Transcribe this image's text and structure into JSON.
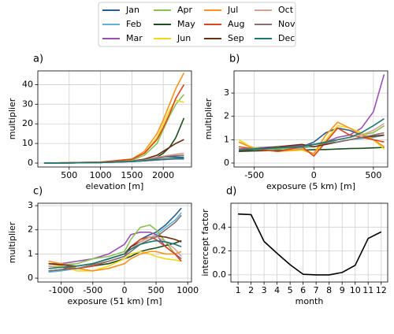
{
  "legend": {
    "names": [
      "Jan",
      "Feb",
      "Mar",
      "Apr",
      "May",
      "Jun",
      "Jul",
      "Aug",
      "Sep",
      "Oct",
      "Nov",
      "Dec"
    ],
    "colors": [
      "#2b5d8a",
      "#5ab4d8",
      "#9b4fb4",
      "#8cc152",
      "#1e4d1e",
      "#f0d81a",
      "#f7931e",
      "#d9471e",
      "#6b2e0e",
      "#d4a394",
      "#8a7070",
      "#1a7a70"
    ]
  },
  "chart_data": [
    {
      "type": "line",
      "label": "a)",
      "xlabel": "elevation [m]",
      "ylabel": "multiplier",
      "grid": true,
      "xlim": [
        0,
        2450
      ],
      "ylim": [
        -2,
        47
      ],
      "xticks": [
        500,
        1000,
        1500,
        2000
      ],
      "yticks": [
        0,
        10,
        20,
        30,
        40
      ],
      "x": [
        100,
        500,
        1000,
        1500,
        1700,
        1900,
        2000,
        2100,
        2200,
        2330
      ],
      "series": [
        {
          "values": [
            0,
            0.2,
            0.5,
            1.2,
            1.8,
            2.5,
            3,
            3.2,
            3.1,
            3
          ]
        },
        {
          "values": [
            0,
            0.1,
            0.3,
            0.8,
            1.2,
            1.6,
            1.8,
            2,
            2.1,
            2
          ]
        },
        {
          "values": [
            0,
            0.1,
            0.3,
            0.8,
            1.2,
            1.6,
            1.8,
            2,
            2.2,
            2.3
          ]
        },
        {
          "values": [
            0,
            0.2,
            0.5,
            1.5,
            4,
            10,
            17,
            24,
            30,
            35
          ]
        },
        {
          "values": [
            0,
            0.1,
            0.3,
            1,
            1.5,
            3,
            5,
            8,
            13,
            23
          ]
        },
        {
          "values": [
            0,
            0.2,
            0.5,
            2,
            5,
            13,
            20,
            27,
            32,
            31
          ]
        },
        {
          "values": [
            0,
            0.2,
            0.5,
            2,
            6,
            15,
            22,
            30,
            38,
            46
          ]
        },
        {
          "values": [
            0,
            0.2,
            0.5,
            2,
            5,
            12,
            18,
            25,
            33,
            40
          ]
        },
        {
          "values": [
            0,
            0.1,
            0.3,
            1,
            2,
            4,
            6,
            8,
            10,
            12
          ]
        },
        {
          "values": [
            0,
            0.1,
            0.3,
            1,
            1.5,
            3,
            3.5,
            4,
            4.5,
            5
          ]
        },
        {
          "values": [
            0,
            0.1,
            0.3,
            0.9,
            1.3,
            2.5,
            3,
            3.5,
            3.8,
            4
          ]
        },
        {
          "values": [
            0,
            0.1,
            0.3,
            0.8,
            1.2,
            1.8,
            2,
            2.2,
            2.4,
            2.5
          ]
        }
      ]
    },
    {
      "type": "line",
      "label": "b)",
      "xlabel": "exposure (5 km) [m]",
      "ylabel": "multiplier",
      "grid": true,
      "xlim": [
        -670,
        620
      ],
      "ylim": [
        -0.17,
        3.95
      ],
      "xticks": [
        -500,
        0,
        500
      ],
      "yticks": [
        0,
        1,
        2,
        3
      ],
      "x": [
        -630,
        -500,
        -300,
        -100,
        0,
        100,
        200,
        300,
        400,
        500,
        590
      ],
      "series": [
        {
          "values": [
            0.6,
            0.6,
            0.65,
            0.7,
            0.9,
            1.3,
            1.5,
            1.4,
            1.2,
            1.1,
            1.2
          ]
        },
        {
          "values": [
            0.5,
            0.55,
            0.6,
            0.65,
            0.7,
            0.8,
            0.9,
            1.0,
            1.05,
            1.1,
            1.2
          ]
        },
        {
          "values": [
            0.6,
            0.65,
            0.7,
            0.75,
            0.8,
            0.9,
            1.1,
            1.2,
            1.5,
            2.2,
            3.8
          ]
        },
        {
          "values": [
            0.9,
            0.65,
            0.6,
            0.7,
            0.7,
            0.8,
            1.0,
            1.1,
            1.2,
            1.3,
            1.6
          ]
        },
        {
          "values": [
            0.5,
            0.52,
            0.54,
            0.55,
            0.57,
            0.58,
            0.6,
            0.62,
            0.63,
            0.65,
            0.67
          ]
        },
        {
          "values": [
            1.0,
            0.6,
            0.5,
            0.55,
            0.4,
            1.0,
            1.6,
            1.5,
            1.3,
            1.0,
            0.6
          ]
        },
        {
          "values": [
            0.9,
            0.6,
            0.5,
            0.6,
            0.4,
            1.2,
            1.75,
            1.5,
            1.2,
            1.0,
            0.7
          ]
        },
        {
          "values": [
            0.7,
            0.6,
            0.5,
            0.7,
            0.3,
            0.9,
            1.5,
            1.2,
            1.1,
            1.0,
            0.9
          ]
        },
        {
          "values": [
            0.5,
            0.6,
            0.7,
            0.8,
            0.7,
            0.8,
            0.9,
            1.0,
            1.1,
            1.15,
            1.2
          ]
        },
        {
          "values": [
            0.6,
            0.6,
            0.65,
            0.7,
            0.8,
            0.9,
            1.0,
            1.1,
            1.2,
            1.4,
            1.7
          ]
        },
        {
          "values": [
            0.6,
            0.6,
            0.65,
            0.7,
            0.8,
            0.85,
            0.9,
            1.0,
            1.1,
            1.2,
            1.3
          ]
        },
        {
          "values": [
            0.55,
            0.6,
            0.65,
            0.7,
            0.8,
            0.9,
            1.0,
            1.1,
            1.3,
            1.6,
            1.9
          ]
        }
      ]
    },
    {
      "type": "line",
      "label": "c)",
      "xlabel": "exposure (51 km) [m]",
      "ylabel": "multiplier",
      "grid": true,
      "xlim": [
        -1370,
        1060
      ],
      "ylim": [
        -0.16,
        3.1
      ],
      "xticks": [
        -1000,
        -500,
        0,
        500,
        1000
      ],
      "yticks": [
        0,
        1,
        2,
        3
      ],
      "x": [
        -1200,
        -1000,
        -750,
        -500,
        -250,
        0,
        100,
        250,
        400,
        500,
        650,
        800,
        900
      ],
      "series": [
        {
          "values": [
            0.3,
            0.35,
            0.5,
            0.6,
            0.8,
            1.0,
            1.3,
            1.6,
            1.8,
            1.9,
            2.2,
            2.6,
            2.9
          ]
        },
        {
          "values": [
            0.25,
            0.3,
            0.4,
            0.5,
            0.7,
            0.9,
            1.1,
            1.4,
            1.6,
            1.8,
            2.1,
            2.4,
            2.7
          ]
        },
        {
          "values": [
            0.6,
            0.6,
            0.7,
            0.8,
            1.0,
            1.4,
            1.8,
            1.9,
            1.9,
            1.8,
            1.3,
            1.0,
            0.8
          ]
        },
        {
          "values": [
            0.6,
            0.55,
            0.6,
            0.8,
            0.9,
            1.1,
            1.6,
            2.1,
            2.2,
            2.0,
            1.5,
            1.0,
            0.7
          ]
        },
        {
          "values": [
            0.3,
            0.35,
            0.4,
            0.5,
            0.6,
            0.8,
            0.9,
            1.1,
            1.2,
            1.25,
            1.35,
            1.45,
            1.55
          ]
        },
        {
          "values": [
            0.6,
            0.5,
            0.3,
            0.3,
            0.5,
            0.8,
            1.0,
            1.1,
            1.0,
            0.9,
            0.8,
            0.75,
            0.7
          ]
        },
        {
          "values": [
            0.7,
            0.6,
            0.4,
            0.3,
            0.4,
            0.6,
            0.8,
            1.0,
            1.1,
            1.1,
            1.0,
            1.0,
            1.1
          ]
        },
        {
          "values": [
            0.5,
            0.45,
            0.4,
            0.5,
            0.7,
            0.9,
            1.3,
            1.6,
            1.7,
            1.6,
            1.3,
            1.0,
            0.7
          ]
        },
        {
          "values": [
            0.6,
            0.55,
            0.5,
            0.6,
            0.8,
            1.0,
            1.3,
            1.5,
            1.7,
            1.75,
            1.7,
            1.6,
            1.5
          ]
        },
        {
          "values": [
            0.5,
            0.45,
            0.5,
            0.6,
            0.8,
            1.0,
            1.2,
            1.5,
            1.7,
            1.75,
            1.5,
            1.2,
            0.9
          ]
        },
        {
          "values": [
            0.3,
            0.35,
            0.4,
            0.55,
            0.7,
            0.9,
            1.1,
            1.4,
            1.6,
            1.7,
            2.0,
            2.3,
            2.6
          ]
        },
        {
          "values": [
            0.4,
            0.45,
            0.5,
            0.6,
            0.8,
            1.0,
            1.2,
            1.4,
            1.5,
            1.55,
            1.5,
            1.4,
            1.3
          ]
        }
      ]
    },
    {
      "type": "line",
      "label": "d)",
      "xlabel": "month",
      "ylabel": "intercept factor",
      "grid": true,
      "color": "#000000",
      "xlim": [
        0.45,
        12.5
      ],
      "ylim": [
        -0.06,
        0.6
      ],
      "xticks": [
        1,
        2,
        3,
        4,
        5,
        6,
        7,
        8,
        9,
        10,
        11,
        12
      ],
      "yticks": [
        {
          "value": 0,
          "label": "0.0"
        },
        0.2,
        0.4
      ],
      "x": [
        1,
        2,
        3,
        4,
        5,
        6,
        7,
        8,
        9,
        10,
        11,
        12
      ],
      "values": [
        0.51,
        0.505,
        0.28,
        0.18,
        0.085,
        0.005,
        0,
        0,
        0.02,
        0.08,
        0.305,
        0.36
      ]
    }
  ]
}
